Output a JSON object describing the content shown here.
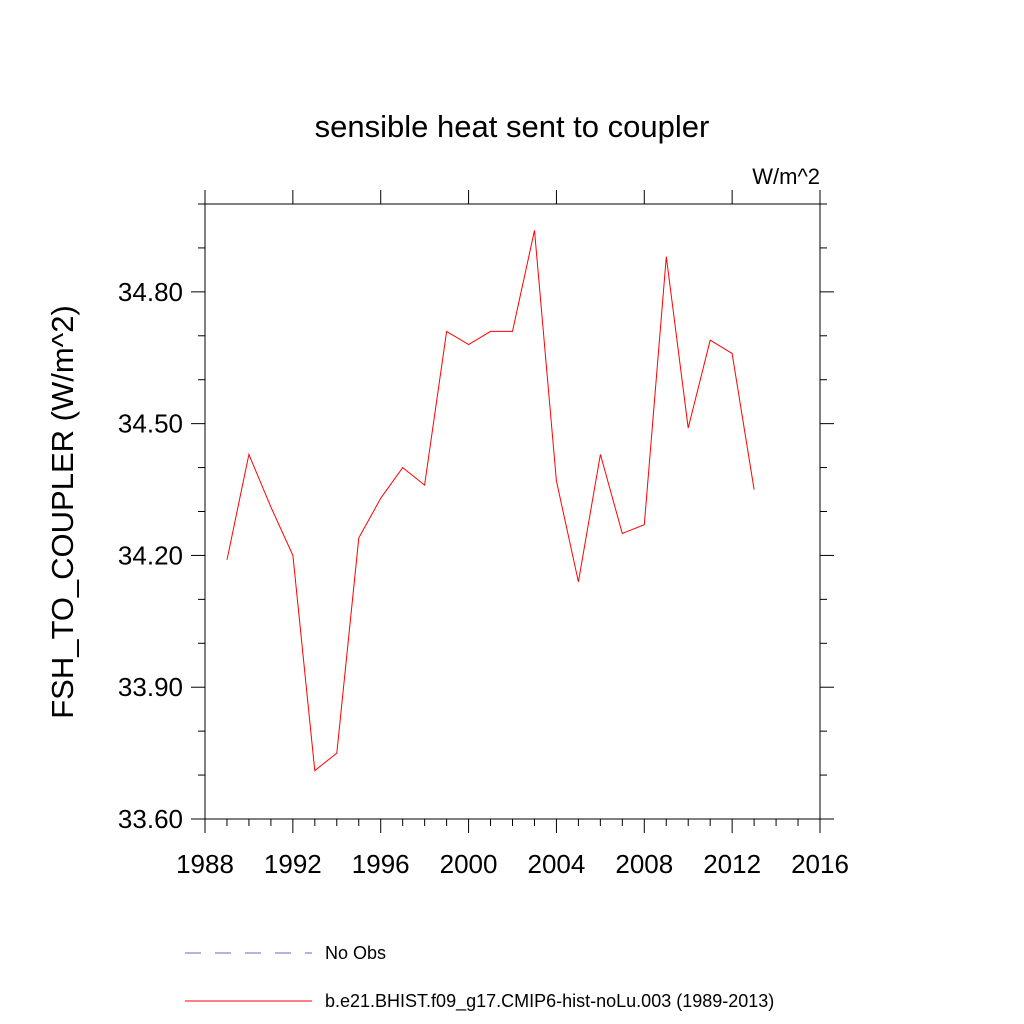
{
  "chart_data": {
    "type": "line",
    "title": "sensible heat sent to coupler",
    "units_label": "W/m^2",
    "ylabel": "FSH_TO_COUPLER  (W/m^2)",
    "xlabel": "",
    "xlim": [
      1988,
      2016
    ],
    "ylim": [
      33.6,
      35.0
    ],
    "x_ticks": [
      1988,
      1992,
      1996,
      2000,
      2004,
      2008,
      2012,
      2016
    ],
    "x_tick_labels": [
      "1988",
      "1992",
      "1996",
      "2000",
      "2004",
      "2008",
      "2012",
      "2016"
    ],
    "y_ticks": [
      33.6,
      33.9,
      34.2,
      34.5,
      34.8
    ],
    "y_tick_labels": [
      "33.60",
      "33.90",
      "34.20",
      "34.50",
      "34.80"
    ],
    "grid": false,
    "legend_position": "bottom",
    "series": [
      {
        "name": "b.e21.BHIST.f09_g17.CMIP6-hist-noLu.003 (1989-2013)",
        "color": "#ff0000",
        "style": "solid",
        "x": [
          1989,
          1990,
          1991,
          1992,
          1993,
          1994,
          1995,
          1996,
          1997,
          1998,
          1999,
          2000,
          2001,
          2002,
          2003,
          2004,
          2005,
          2006,
          2007,
          2008,
          2009,
          2010,
          2011,
          2012,
          2013
        ],
        "y": [
          34.19,
          34.43,
          34.31,
          34.2,
          33.71,
          33.75,
          34.24,
          34.33,
          34.4,
          34.36,
          34.71,
          34.68,
          34.71,
          34.71,
          34.94,
          34.37,
          34.14,
          34.43,
          34.25,
          34.27,
          34.88,
          34.49,
          34.69,
          34.66,
          34.35
        ]
      }
    ],
    "legend": [
      {
        "label": "No Obs",
        "color": "#6666cc",
        "style": "dashed"
      },
      {
        "label": "b.e21.BHIST.f09_g17.CMIP6-hist-noLu.003 (1989-2013)",
        "color": "#ff0000",
        "style": "solid"
      }
    ]
  }
}
